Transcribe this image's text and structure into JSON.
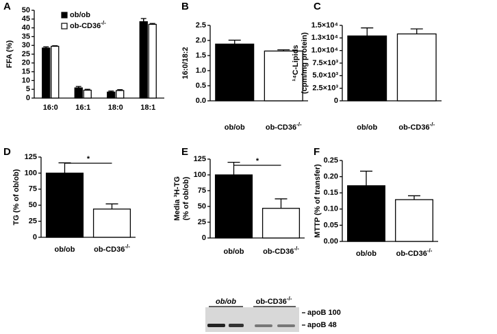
{
  "chart_data": [
    {
      "type": "grouped-bar",
      "letter": "A",
      "ylabel": [
        "FFA (%)"
      ],
      "categories": [
        "16:0",
        "16:1",
        "18:0",
        "18:1"
      ],
      "series": [
        {
          "name": "ob/ob",
          "color": "#000000",
          "values": [
            28.5,
            5.8,
            3.4,
            43.5
          ],
          "errors": [
            0.7,
            0.8,
            0.6,
            1.8
          ]
        },
        {
          "name": "ob-CD36-/-",
          "color": "#ffffff",
          "values": [
            29.5,
            4.5,
            4.3,
            42
          ],
          "errors": [
            0.3,
            0.5,
            0.5,
            0.5
          ]
        }
      ],
      "ylim": [
        0,
        50
      ],
      "yticks": [
        0,
        5,
        10,
        15,
        20,
        25,
        30,
        35,
        40,
        45,
        50
      ]
    },
    {
      "type": "bar",
      "letter": "B",
      "ylabel": [
        "16:0/18:2"
      ],
      "categories": [
        "ob/ob",
        "ob-CD36-/-"
      ],
      "values": [
        1.88,
        1.65
      ],
      "errors": [
        0.13,
        0.04
      ],
      "colors": [
        "#000000",
        "#ffffff"
      ],
      "ylim": [
        0,
        2.5
      ],
      "yticks": [
        {
          "value": 0,
          "label": "0.0"
        },
        0.5,
        {
          "value": 1,
          "label": "1.0"
        },
        1.5,
        {
          "value": 2,
          "label": "2.0"
        },
        2.5
      ]
    },
    {
      "type": "bar",
      "letter": "C",
      "ylabel": [
        "¹⁴C-Lipids",
        "(cpm/mg protein)"
      ],
      "categories": [
        "ob/ob",
        "ob-CD36-/-"
      ],
      "values": [
        12900,
        13300
      ],
      "errors": [
        1600,
        1000
      ],
      "colors": [
        "#000000",
        "#ffffff"
      ],
      "ylim": [
        0,
        15000
      ],
      "yticks": [
        0,
        {
          "value": 2500,
          "label": "2.5×10³"
        },
        {
          "value": 5000,
          "label": "5.0×10³"
        },
        {
          "value": 7500,
          "label": "7.5×10³"
        },
        {
          "value": 10000,
          "label": "1.0×10⁴"
        },
        {
          "value": 12500,
          "label": "1.3×10⁴"
        },
        {
          "value": 15000,
          "label": "1.5×10⁴"
        }
      ]
    },
    {
      "type": "bar",
      "letter": "D",
      "ylabel": [
        "TG (% of ob/ob)"
      ],
      "annotation": "*",
      "categories": [
        "ob/ob",
        "ob-CD36-/-"
      ],
      "values": [
        100,
        44
      ],
      "errors": [
        16,
        8
      ],
      "colors": [
        "#000000",
        "#ffffff"
      ],
      "ylim": [
        0,
        125
      ],
      "yticks": [
        0,
        25,
        50,
        75,
        100,
        125
      ]
    },
    {
      "type": "bar",
      "letter": "E",
      "ylabel": [
        "Media ³H-TG",
        "(% of ob/ob)"
      ],
      "annotation": "*",
      "categories": [
        "ob/ob",
        "ob-CD36-/-"
      ],
      "values": [
        100,
        47
      ],
      "errors": [
        20,
        15
      ],
      "colors": [
        "#000000",
        "#ffffff"
      ],
      "ylim": [
        0,
        125
      ],
      "yticks": [
        0,
        25,
        50,
        75,
        100,
        125
      ]
    },
    {
      "type": "bar",
      "letter": "F",
      "ylabel": [
        "MTTP (% of transfer)"
      ],
      "categories": [
        "ob/ob",
        "ob-CD36-/-"
      ],
      "values": [
        0.172,
        0.129
      ],
      "errors": [
        0.045,
        0.012
      ],
      "colors": [
        "#000000",
        "#ffffff"
      ],
      "ylim": [
        0,
        0.25
      ],
      "yticks": [
        {
          "value": 0,
          "label": "0.00"
        },
        0.05,
        {
          "value": 0.1,
          "label": "0.10"
        },
        0.15,
        {
          "value": 0.2,
          "label": "0.20"
        },
        0.25
      ]
    }
  ],
  "blot": {
    "groups": [
      "ob/ob",
      "ob-CD36-/-"
    ],
    "bands": [
      "apoB 100",
      "apoB 48"
    ]
  }
}
